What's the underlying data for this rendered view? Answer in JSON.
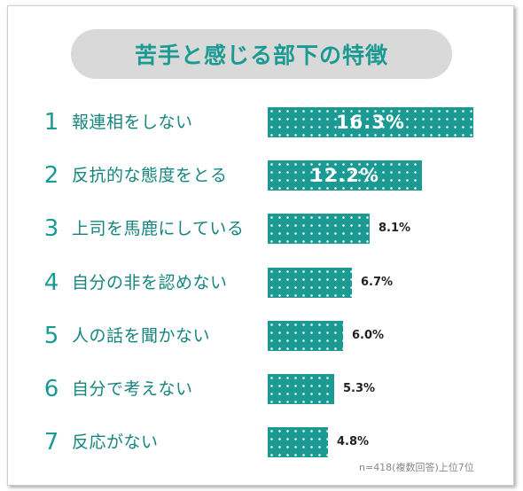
{
  "chart_data": {
    "type": "bar",
    "title": "苦手と感じる部下の特徴",
    "ranks": [
      "1",
      "2",
      "3",
      "4",
      "5",
      "6",
      "7"
    ],
    "categories": [
      "報連相をしない",
      "反抗的な態度をとる",
      "上司を馬鹿にしている",
      "自分の非を認めない",
      "人の話を聞かない",
      "自分で考えない",
      "反応がない"
    ],
    "values": [
      16.3,
      12.2,
      8.1,
      6.7,
      6.0,
      5.3,
      4.8
    ],
    "value_labels": [
      "16.3%",
      "12.2%",
      "8.1%",
      "6.7%",
      "6.0%",
      "5.3%",
      "4.8%"
    ],
    "bar_color": "#1a9a93",
    "label_color": "#17857f",
    "orientation": "horizontal",
    "bar_pattern": "white-dots",
    "note": "n=418(複数回答)上位7位"
  }
}
